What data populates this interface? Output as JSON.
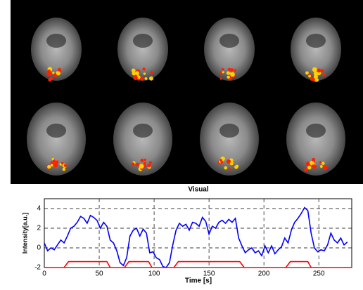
{
  "chart_data": {
    "type": "line",
    "title": "Visual",
    "x_label": "Time [s]",
    "y_label": "Intensity[a.u.]",
    "xlim": [
      0,
      280
    ],
    "ylim": [
      -2,
      5
    ],
    "xticks": [
      0,
      50,
      100,
      150,
      200,
      250
    ],
    "yticks": [
      -2,
      0,
      2,
      4
    ],
    "grid": true,
    "series": [
      {
        "color": "#0000ff",
        "x": [
          0,
          3,
          6,
          9,
          12,
          15,
          18,
          21,
          24,
          27,
          30,
          33,
          36,
          39,
          42,
          45,
          48,
          51,
          54,
          57,
          60,
          63,
          66,
          69,
          72,
          75,
          78,
          81,
          84,
          87,
          90,
          93,
          96,
          99,
          102,
          105,
          108,
          111,
          114,
          117,
          120,
          123,
          126,
          129,
          132,
          135,
          138,
          141,
          144,
          147,
          150,
          153,
          156,
          159,
          162,
          165,
          168,
          171,
          174,
          177,
          180,
          183,
          186,
          189,
          192,
          195,
          198,
          201,
          204,
          207,
          210,
          213,
          216,
          219,
          222,
          225,
          228,
          231,
          234,
          237,
          240,
          243,
          246,
          249,
          252,
          255,
          258,
          261,
          264,
          267,
          270,
          273,
          276
        ],
        "values": [
          0.5,
          -0.3,
          0,
          -0.2,
          0.3,
          0.8,
          0.5,
          1.2,
          2.0,
          2.2,
          2.6,
          3.2,
          3.0,
          2.5,
          3.3,
          3.1,
          2.8,
          2.0,
          2.6,
          2.2,
          0.8,
          0.5,
          -0.3,
          -1.5,
          -1.8,
          -1.0,
          1.2,
          1.8,
          2.0,
          1.2,
          1.9,
          1.5,
          -0.5,
          -0.4,
          -1.0,
          -1.2,
          -1.9,
          -2.0,
          -1.5,
          0.3,
          1.8,
          2.5,
          2.2,
          2.4,
          1.8,
          2.6,
          2.5,
          2.2,
          3.1,
          2.7,
          1.4,
          2.2,
          2.0,
          2.6,
          2.8,
          2.5,
          2.9,
          2.6,
          3.0,
          1.0,
          0.2,
          -0.5,
          -0.2,
          0,
          -0.5,
          -0.3,
          -0.8,
          0.2,
          -0.5,
          0.2,
          -0.6,
          -0.2,
          0.1,
          1.0,
          0.5,
          1.8,
          2.6,
          3.0,
          3.5,
          4.1,
          3.8,
          1.5,
          0,
          -0.4,
          -0.2,
          -0.3,
          0.3,
          1.5,
          0.8,
          0.5,
          1.0,
          0.3,
          0.6
        ]
      },
      {
        "color": "#ff0000",
        "x": [
          0,
          18,
          22,
          57,
          60,
          73,
          77,
          95,
          98,
          118,
          122,
          178,
          182,
          220,
          224,
          240,
          243,
          280
        ],
        "values": [
          -2,
          -2,
          -1.4,
          -1.4,
          -2,
          -2,
          -1.4,
          -1.4,
          -2,
          -2,
          -1.4,
          -1.4,
          -2,
          -2,
          -1.4,
          -1.4,
          -2,
          -2
        ]
      }
    ]
  }
}
